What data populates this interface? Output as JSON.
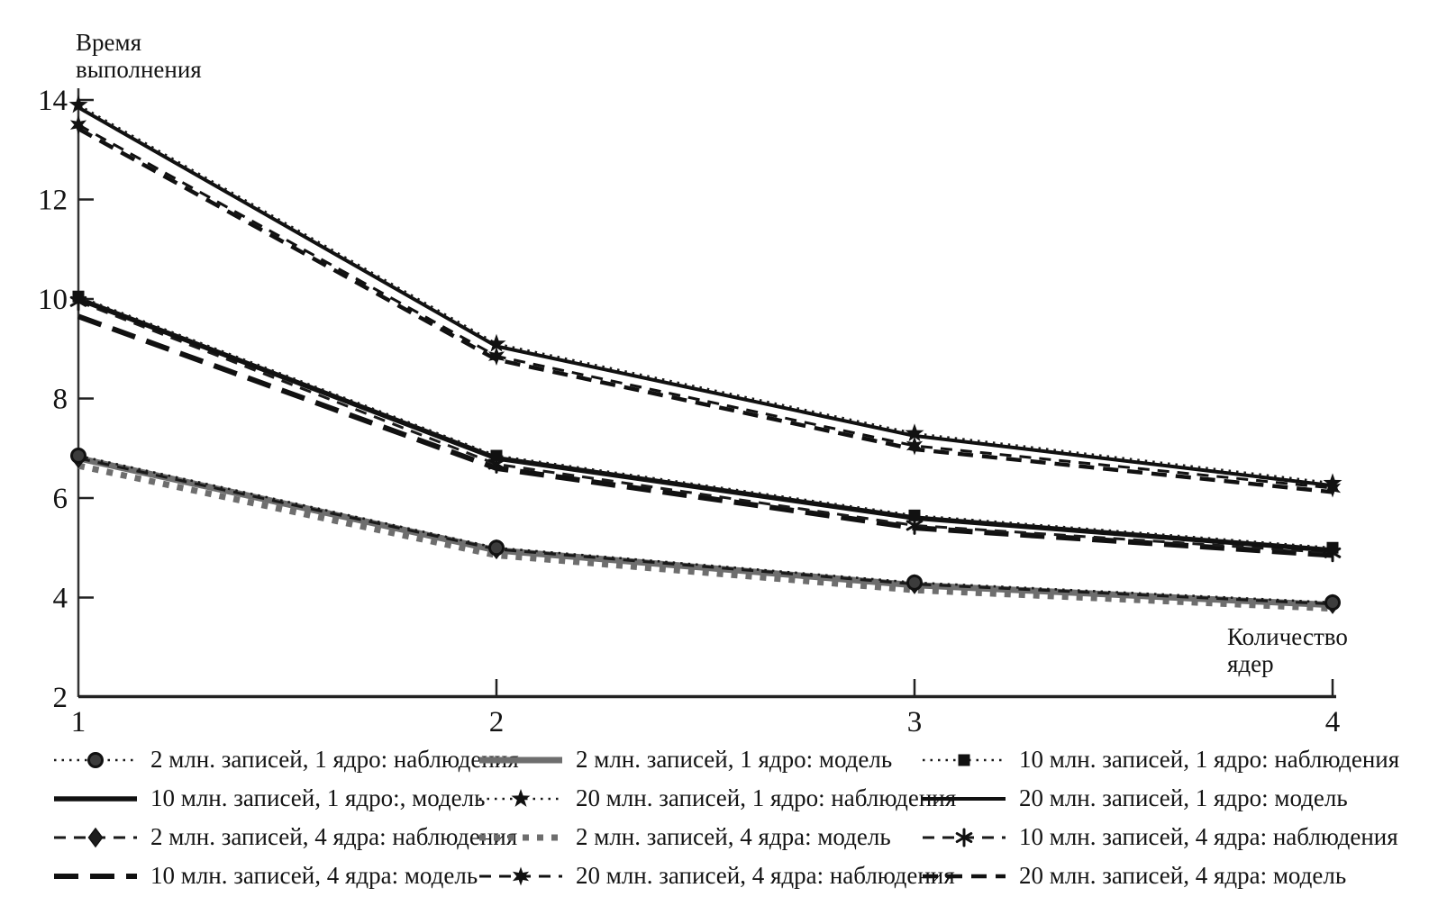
{
  "figure": {
    "y_axis_title_line1": "Время",
    "y_axis_title_line2": "выполнения",
    "x_axis_title_line1": "Количество",
    "x_axis_title_line2": "ядер"
  },
  "colors": {
    "line_black": "#111111",
    "line_gray": "#6e6e6e",
    "marker_circle_fill": "#3c3c3c",
    "text": "#141414",
    "background": "#ffffff"
  },
  "chart_data": {
    "type": "line",
    "title": "",
    "xlabel": "Количество ядер",
    "ylabel": "Время выполнения",
    "x": [
      1,
      2,
      3,
      4
    ],
    "xlim": [
      1,
      4
    ],
    "ylim": [
      2,
      14
    ],
    "xticks": [
      1,
      2,
      3,
      4
    ],
    "yticks": [
      2,
      4,
      6,
      8,
      10,
      12,
      14
    ],
    "grid": false,
    "legend_position": "bottom",
    "legend_columns": 3,
    "series": [
      {
        "id": "2m1c_obs",
        "label": "2 млн. записей, 1 ядро: наблюдения",
        "line": "dotted",
        "marker": "circle",
        "color": "#1a1a1a",
        "values": [
          6.85,
          5.0,
          4.3,
          3.9
        ]
      },
      {
        "id": "2m1c_model",
        "label": "2 млн. записей, 1 ядро: модель",
        "line": "solid_gray",
        "marker": "none",
        "color": "#6e6e6e",
        "values": [
          6.8,
          4.95,
          4.25,
          3.85
        ]
      },
      {
        "id": "10m1c_obs",
        "label": "10 млн. записей, 1 ядро: наблюдения",
        "line": "dotted",
        "marker": "square",
        "color": "#1a1a1a",
        "values": [
          10.05,
          6.85,
          5.65,
          5.0
        ]
      },
      {
        "id": "10m1c_model",
        "label": "10 млн. записей, 1 ядро:, модель",
        "line": "solid_mid",
        "marker": "none",
        "color": "#111111",
        "values": [
          10.0,
          6.8,
          5.6,
          4.95
        ]
      },
      {
        "id": "20m1c_obs",
        "label": "20 млн. записей, 1 ядро: наблюдения",
        "line": "dotted",
        "marker": "star",
        "color": "#1a1a1a",
        "values": [
          13.9,
          9.1,
          7.3,
          6.3
        ]
      },
      {
        "id": "20m1c_model",
        "label": "20 млн. записей, 1 ядро: модель",
        "line": "solid_thin",
        "marker": "none",
        "color": "#111111",
        "values": [
          13.85,
          9.05,
          7.25,
          6.25
        ]
      },
      {
        "id": "2m4c_obs",
        "label": "2 млн. записей, 4 ядра: наблюдения",
        "line": "dash_thin",
        "marker": "diamond",
        "color": "#1a1a1a",
        "values": [
          6.8,
          4.97,
          4.27,
          3.87
        ]
      },
      {
        "id": "2m4c_model",
        "label": "2 млн. записей, 4 ядра: модель",
        "line": "gray_dots",
        "marker": "none",
        "color": "#6e6e6e",
        "values": [
          6.65,
          4.85,
          4.15,
          3.78
        ]
      },
      {
        "id": "10m4c_obs",
        "label": "10 млн. записей, 4 ядра: наблюдения",
        "line": "dash_thin",
        "marker": "asterisk",
        "color": "#1a1a1a",
        "values": [
          9.95,
          6.68,
          5.45,
          4.9
        ]
      },
      {
        "id": "10m4c_model",
        "label": "10 млн. записей, 4 ядра: модель",
        "line": "dash_long",
        "marker": "none",
        "color": "#111111",
        "values": [
          9.65,
          6.6,
          5.4,
          4.85
        ]
      },
      {
        "id": "20m4c_obs",
        "label": "20 млн. записей, 4 ядра: наблюдения",
        "line": "dash_thin",
        "marker": "boldstar",
        "color": "#111111",
        "values": [
          13.5,
          8.85,
          7.05,
          6.2
        ]
      },
      {
        "id": "20m4c_model",
        "label": "20 млн. записей, 4 ядра: модель",
        "line": "dash_mid",
        "marker": "none",
        "color": "#111111",
        "values": [
          13.42,
          8.78,
          6.98,
          6.12
        ]
      }
    ]
  }
}
